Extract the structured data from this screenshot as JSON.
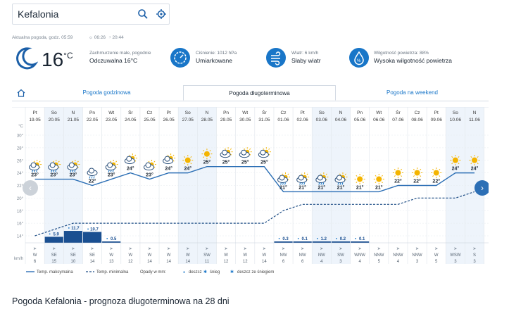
{
  "search": {
    "value": "Kefalonia"
  },
  "current": {
    "label": "Aktualna pogoda, godz. 05:59",
    "sunrise": "06:26",
    "sunset": "20:44",
    "temp": "16",
    "unit": "°C",
    "summary": "Zachmurzenie małe, pogodnie",
    "feels": "Odczuwalna 16°C",
    "pressure_label": "Ciśnienie: 1012 hPa",
    "pressure_value": "Umiarkowane",
    "wind_label": "Wiatr: 6 km/h",
    "wind_value": "Słaby wiatr",
    "humidity_label": "Wilgotność powietrza: 88%",
    "humidity_value": "Wysoka wilgotność powietrza"
  },
  "tabs": [
    "Pogoda godzinowa",
    "Pogoda długoterminowa",
    "Pogoda na weekend"
  ],
  "legend": {
    "max": "Temp. maksymalna",
    "min": "Temp. minimalna",
    "precip": "Opady w mm:",
    "rain": "deszcz",
    "snow": "śnieg",
    "sleet": "deszcz ze śniegiem"
  },
  "axis": {
    "temp_unit": "°C",
    "wind_unit": "km/h",
    "ticks": [
      30,
      28,
      26,
      24,
      22,
      20,
      18,
      16,
      14
    ]
  },
  "chart_data": {
    "type": "line",
    "days": [
      {
        "dow": "Pt",
        "date": "19.05",
        "max": 23,
        "min": 14,
        "precip": null,
        "icon": "cloud-sun-rain",
        "wdir": "W",
        "wspd": 6
      },
      {
        "dow": "So",
        "date": "20.05",
        "max": 23,
        "min": 15,
        "precip": 5.9,
        "icon": "cloud-sun-rain",
        "wdir": "SE",
        "wspd": 15
      },
      {
        "dow": "N",
        "date": "21.05",
        "max": 23,
        "min": 16,
        "precip": 11.7,
        "icon": "cloud-sun-rain",
        "wdir": "SE",
        "wspd": 10
      },
      {
        "dow": "Pn",
        "date": "22.05",
        "max": 22,
        "min": 16,
        "precip": 10.7,
        "icon": "cloud-rain",
        "wdir": "SE",
        "wspd": 14
      },
      {
        "dow": "Wt",
        "date": "23.05",
        "max": 23,
        "min": 16,
        "precip": 0.5,
        "icon": "cloud-sun-rain",
        "wdir": "W",
        "wspd": 13
      },
      {
        "dow": "Śr",
        "date": "24.05",
        "max": 24,
        "min": 16,
        "precip": null,
        "icon": "sun-cloud",
        "wdir": "W",
        "wspd": 12
      },
      {
        "dow": "Cz",
        "date": "25.05",
        "max": 23,
        "min": 16,
        "precip": null,
        "icon": "cloud-sun",
        "wdir": "W",
        "wspd": 14
      },
      {
        "dow": "Pt",
        "date": "26.05",
        "max": 24,
        "min": 16,
        "precip": null,
        "icon": "sun-cloud",
        "wdir": "W",
        "wspd": 14
      },
      {
        "dow": "So",
        "date": "27.05",
        "max": 24,
        "min": 16,
        "precip": null,
        "icon": "sun",
        "wdir": "W",
        "wspd": 14
      },
      {
        "dow": "N",
        "date": "28.05",
        "max": 25,
        "min": 16,
        "precip": null,
        "icon": "sun",
        "wdir": "SW",
        "wspd": 11
      },
      {
        "dow": "Pn",
        "date": "29.05",
        "max": 25,
        "min": 16,
        "precip": null,
        "icon": "cloud-sun",
        "wdir": "W",
        "wspd": 12
      },
      {
        "dow": "Wt",
        "date": "30.05",
        "max": 25,
        "min": 16,
        "precip": null,
        "icon": "cloud-sun",
        "wdir": "W",
        "wspd": 12
      },
      {
        "dow": "Śr",
        "date": "31.05",
        "max": 25,
        "min": 16,
        "precip": null,
        "icon": "cloud-sun",
        "wdir": "W",
        "wspd": 14
      },
      {
        "dow": "Cz",
        "date": "01.06",
        "max": 21,
        "min": 18,
        "precip": 0.3,
        "icon": "cloud-sun-rain",
        "wdir": "NW",
        "wspd": 6
      },
      {
        "dow": "Pt",
        "date": "02.06",
        "max": 21,
        "min": 19,
        "precip": 0.1,
        "icon": "cloud-sun-rain",
        "wdir": "NW",
        "wspd": 6
      },
      {
        "dow": "So",
        "date": "03.06",
        "max": 21,
        "min": 19,
        "precip": 1.2,
        "icon": "cloud-sun-rain",
        "wdir": "NW",
        "wspd": 4
      },
      {
        "dow": "N",
        "date": "04.06",
        "max": 21,
        "min": 19,
        "precip": 0.2,
        "icon": "cloud-sun-rain",
        "wdir": "SW",
        "wspd": 3
      },
      {
        "dow": "Pn",
        "date": "05.06",
        "max": 21,
        "min": 19,
        "precip": 0.1,
        "icon": "sun",
        "wdir": "WNW",
        "wspd": 4
      },
      {
        "dow": "Wt",
        "date": "06.06",
        "max": 21,
        "min": 19,
        "precip": null,
        "icon": "sun",
        "wdir": "NNW",
        "wspd": 5
      },
      {
        "dow": "Śr",
        "date": "07.06",
        "max": 22,
        "min": 19,
        "precip": null,
        "icon": "sun",
        "wdir": "NNW",
        "wspd": 4
      },
      {
        "dow": "Cz",
        "date": "08.06",
        "max": 22,
        "min": 20,
        "precip": null,
        "icon": "sun",
        "wdir": "NNW",
        "wspd": 3
      },
      {
        "dow": "Pt",
        "date": "09.06",
        "max": 22,
        "min": 20,
        "precip": null,
        "icon": "sun",
        "wdir": "W",
        "wspd": 5
      },
      {
        "dow": "So",
        "date": "10.06",
        "max": 24,
        "min": 20,
        "precip": null,
        "icon": "sun",
        "wdir": "WSW",
        "wspd": 3
      },
      {
        "dow": "N",
        "date": "11.06",
        "max": 24,
        "min": 21,
        "precip": null,
        "icon": "sun",
        "wdir": "S",
        "wspd": 3
      }
    ],
    "ylim": [
      14,
      30
    ]
  },
  "bottom_title": "Pogoda Kefalonia - prognoza długoterminowa na 28 dni",
  "colors": {
    "accent": "#1976c8",
    "max_line": "#2c6fb5",
    "min_line": "#1f4e86",
    "bar": "#1a4f91",
    "shade": "#eef4fb",
    "sun": "#f4b400"
  }
}
